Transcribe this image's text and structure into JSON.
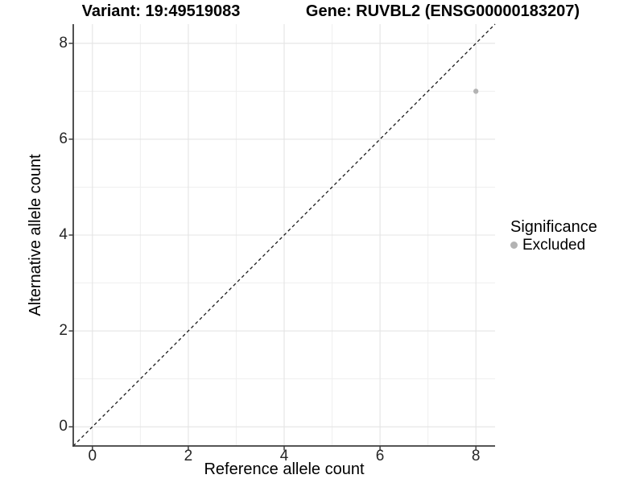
{
  "page": {
    "background": "#ffffff"
  },
  "chart_data": {
    "type": "scatter",
    "title_left": "Variant: 19:49519083",
    "title_right": "Gene: RUVBL2 (ENSG00000183207)",
    "xlabel": "Reference allele count",
    "ylabel": "Alternative allele count",
    "xlim": [
      -0.4,
      8.4
    ],
    "ylim": [
      -0.4,
      8.4
    ],
    "x_major_ticks": [
      0,
      2,
      4,
      6,
      8
    ],
    "y_major_ticks": [
      0,
      2,
      4,
      6,
      8
    ],
    "x_minor_ticks": [
      1,
      3,
      5,
      7
    ],
    "y_minor_ticks": [
      1,
      3,
      5,
      7
    ],
    "grid": true,
    "reference_line": {
      "style": "dashed",
      "from": [
        -0.4,
        -0.4
      ],
      "to": [
        8.4,
        8.4
      ],
      "color": "#1a1a1a"
    },
    "series": [
      {
        "name": "Excluded",
        "color": "#b3b3b3",
        "points": [
          {
            "x": 8,
            "y": 7
          }
        ]
      }
    ],
    "legend": {
      "title": "Significance",
      "position": "right",
      "items": [
        {
          "label": "Excluded",
          "color": "#b3b3b3"
        }
      ]
    }
  },
  "colors": {
    "grid_major": "#e4e4e4",
    "grid_minor": "#efefef",
    "axis_line": "#3d3d3d",
    "tick_mark": "#3d3d3d",
    "tick_text": "#262626",
    "title_text": "#000000",
    "point": "#b3b3b3",
    "background": "#ffffff"
  }
}
